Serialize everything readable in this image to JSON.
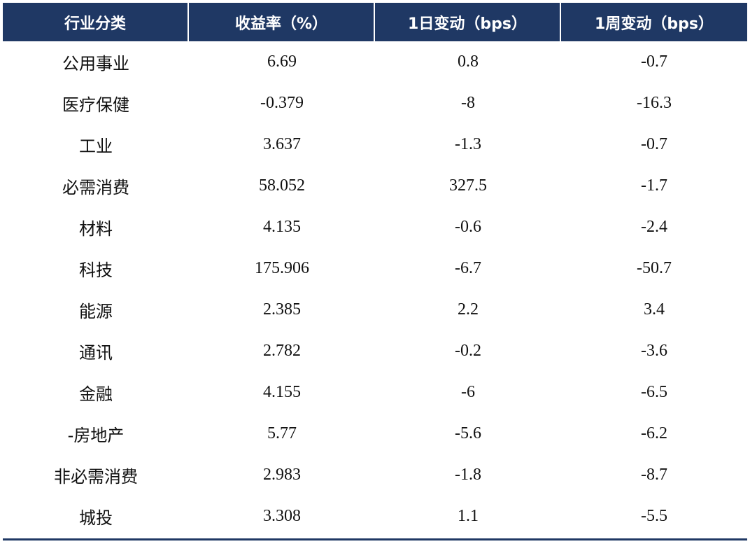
{
  "table": {
    "headers": [
      "行业分类",
      "收益率（%）",
      "1日变动（bps）",
      "1周变动（bps）"
    ],
    "rows": [
      [
        "公用事业",
        "6.69",
        "0.8",
        "-0.7"
      ],
      [
        "医疗保健",
        "-0.379",
        "-8",
        "-16.3"
      ],
      [
        "工业",
        "3.637",
        "-1.3",
        "-0.7"
      ],
      [
        "必需消费",
        "58.052",
        "327.5",
        "-1.7"
      ],
      [
        "材料",
        "4.135",
        "-0.6",
        "-2.4"
      ],
      [
        "科技",
        "175.906",
        "-6.7",
        "-50.7"
      ],
      [
        "能源",
        "2.385",
        "2.2",
        "3.4"
      ],
      [
        "通讯",
        "2.782",
        "-0.2",
        "-3.6"
      ],
      [
        "金融",
        "4.155",
        "-6",
        "-6.5"
      ],
      [
        "-房地产",
        "5.77",
        "-5.6",
        "-6.2"
      ],
      [
        "非必需消费",
        "2.983",
        "-1.8",
        "-8.7"
      ],
      [
        "城投",
        "3.308",
        "1.1",
        "-5.5"
      ]
    ]
  },
  "colors": {
    "header_bg": "#1f3864",
    "header_text": "#ffffff",
    "body_text": "#111111"
  }
}
